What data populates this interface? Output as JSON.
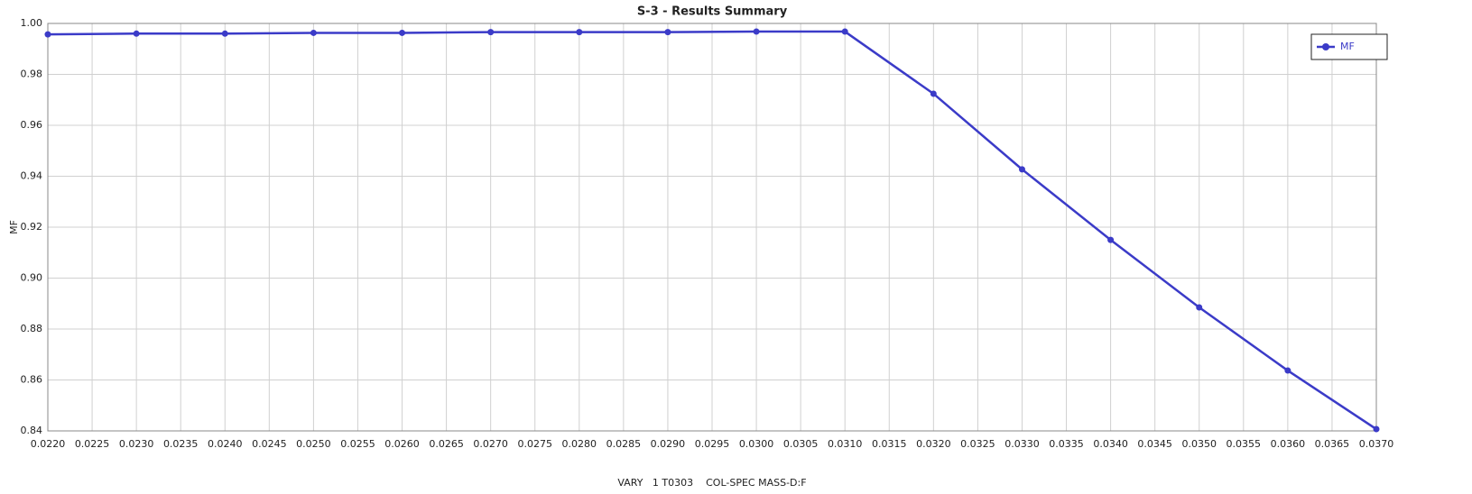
{
  "chart_data": {
    "type": "line",
    "title": "S-3 - Results Summary",
    "x_label": "VARY   1 T0303    COL-SPEC MASS-D:F",
    "y_label": "MF",
    "x": [
      0.022,
      0.023,
      0.024,
      0.025,
      0.026,
      0.027,
      0.028,
      0.029,
      0.03,
      0.031,
      0.032,
      0.033,
      0.034,
      0.035,
      0.036,
      0.037
    ],
    "series": [
      {
        "name": "MF",
        "color": "#3b3bc8",
        "values": [
          0.9957,
          0.996,
          0.996,
          0.9963,
          0.9963,
          0.9966,
          0.9966,
          0.9966,
          0.9968,
          0.9968,
          0.9724,
          0.9427,
          0.915,
          0.8885,
          0.8637,
          0.8407
        ]
      }
    ],
    "xlim": [
      0.022,
      0.037
    ],
    "xticks": [
      {
        "value": 0.022,
        "label": "0.0220"
      },
      {
        "value": 0.0225,
        "label": "0.0225"
      },
      {
        "value": 0.023,
        "label": "0.0230"
      },
      {
        "value": 0.0235,
        "label": "0.0235"
      },
      {
        "value": 0.024,
        "label": "0.0240"
      },
      {
        "value": 0.0245,
        "label": "0.0245"
      },
      {
        "value": 0.025,
        "label": "0.0250"
      },
      {
        "value": 0.0255,
        "label": "0.0255"
      },
      {
        "value": 0.026,
        "label": "0.0260"
      },
      {
        "value": 0.0265,
        "label": "0.0265"
      },
      {
        "value": 0.027,
        "label": "0.0270"
      },
      {
        "value": 0.0275,
        "label": "0.0275"
      },
      {
        "value": 0.028,
        "label": "0.0280"
      },
      {
        "value": 0.0285,
        "label": "0.0285"
      },
      {
        "value": 0.029,
        "label": "0.0290"
      },
      {
        "value": 0.0295,
        "label": "0.0295"
      },
      {
        "value": 0.03,
        "label": "0.0300"
      },
      {
        "value": 0.0305,
        "label": "0.0305"
      },
      {
        "value": 0.031,
        "label": "0.0310"
      },
      {
        "value": 0.0315,
        "label": "0.0315"
      },
      {
        "value": 0.032,
        "label": "0.0320"
      },
      {
        "value": 0.0325,
        "label": "0.0325"
      },
      {
        "value": 0.033,
        "label": "0.0330"
      },
      {
        "value": 0.0335,
        "label": "0.0335"
      },
      {
        "value": 0.034,
        "label": "0.0340"
      },
      {
        "value": 0.0345,
        "label": "0.0345"
      },
      {
        "value": 0.035,
        "label": "0.0350"
      },
      {
        "value": 0.0355,
        "label": "0.0355"
      },
      {
        "value": 0.036,
        "label": "0.0360"
      },
      {
        "value": 0.0365,
        "label": "0.0365"
      },
      {
        "value": 0.037,
        "label": "0.0370"
      }
    ],
    "ylim": [
      0.84,
      1.0
    ],
    "yticks": [
      0.84,
      0.86,
      0.88,
      {
        "value": 0.9,
        "label": "0.90"
      },
      0.92,
      0.94,
      0.96,
      0.98,
      {
        "value": 1.0,
        "label": "1.00"
      }
    ],
    "grid": true,
    "legend": "top-right"
  }
}
